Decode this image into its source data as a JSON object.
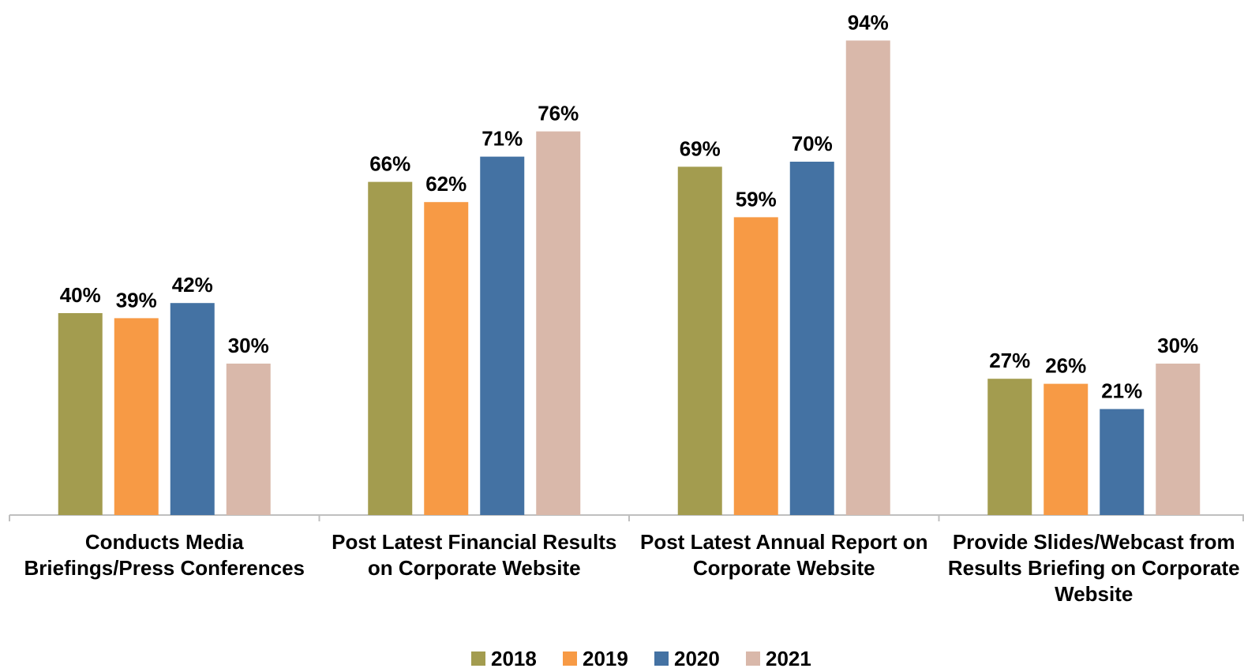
{
  "chart_data": {
    "type": "bar",
    "categories": [
      "Conducts Media Briefings/Press Conferences",
      "Post Latest Financial Results on Corporate Website",
      "Post Latest Annual Report on Corporate Website",
      "Provide Slides/Webcast from Results Briefing on Corporate Website"
    ],
    "series": [
      {
        "name": "2018",
        "color": "#a39c4f",
        "values": [
          40,
          66,
          69,
          27
        ],
        "value_labels": [
          "40%",
          "66%",
          "69%",
          "27%"
        ]
      },
      {
        "name": "2019",
        "color": "#f79a45",
        "values": [
          39,
          62,
          59,
          26
        ],
        "value_labels": [
          "39%",
          "62%",
          "59%",
          "26%"
        ]
      },
      {
        "name": "2020",
        "color": "#4472a3",
        "values": [
          42,
          71,
          70,
          21
        ],
        "value_labels": [
          "42%",
          "71%",
          "70%",
          "21%"
        ]
      },
      {
        "name": "2021",
        "color": "#d9b8aa",
        "values": [
          30,
          76,
          94,
          30
        ],
        "value_labels": [
          "30%",
          "76%",
          "94%",
          "30%"
        ]
      }
    ],
    "ylim": [
      0,
      100
    ],
    "legend": "bottom"
  }
}
